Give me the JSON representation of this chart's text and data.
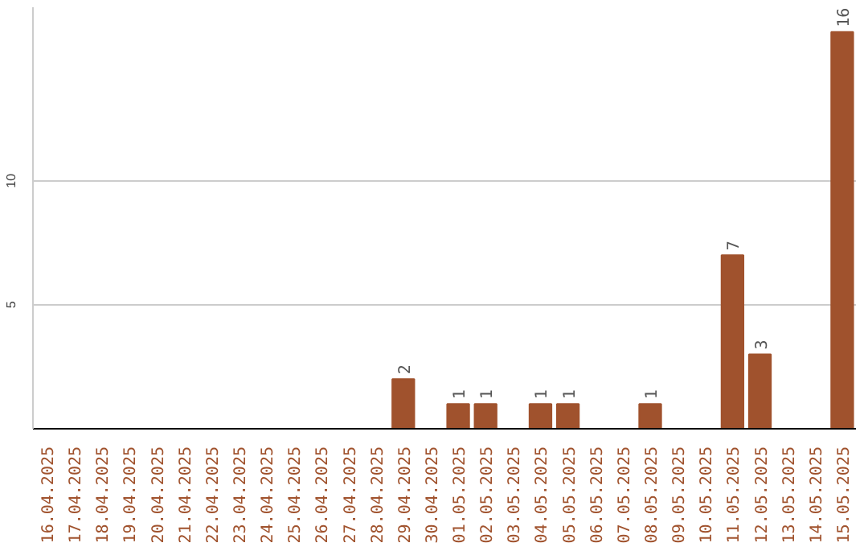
{
  "chart_data": {
    "type": "bar",
    "categories": [
      "16.04.2025",
      "17.04.2025",
      "18.04.2025",
      "19.04.2025",
      "20.04.2025",
      "21.04.2025",
      "22.04.2025",
      "23.04.2025",
      "24.04.2025",
      "25.04.2025",
      "26.04.2025",
      "27.04.2025",
      "28.04.2025",
      "29.04.2025",
      "30.04.2025",
      "01.05.2025",
      "02.05.2025",
      "03.05.2025",
      "04.05.2025",
      "05.05.2025",
      "06.05.2025",
      "07.05.2025",
      "08.05.2025",
      "09.05.2025",
      "10.05.2025",
      "11.05.2025",
      "12.05.2025",
      "13.05.2025",
      "14.05.2025",
      "15.05.2025"
    ],
    "values": [
      0,
      0,
      0,
      0,
      0,
      0,
      0,
      0,
      0,
      0,
      0,
      0,
      0,
      2,
      0,
      1,
      1,
      0,
      1,
      1,
      0,
      0,
      1,
      0,
      0,
      7,
      3,
      0,
      0,
      16
    ],
    "color": "#a0522d",
    "ylim": [
      0,
      17
    ],
    "yticks": [
      5,
      10
    ],
    "grid": "y",
    "value_labels": [
      null,
      null,
      null,
      null,
      null,
      null,
      null,
      null,
      null,
      null,
      null,
      null,
      null,
      "2",
      null,
      "1",
      "1",
      null,
      "1",
      "1",
      null,
      null,
      "1",
      null,
      null,
      "7",
      "3",
      null,
      null,
      "16"
    ]
  }
}
